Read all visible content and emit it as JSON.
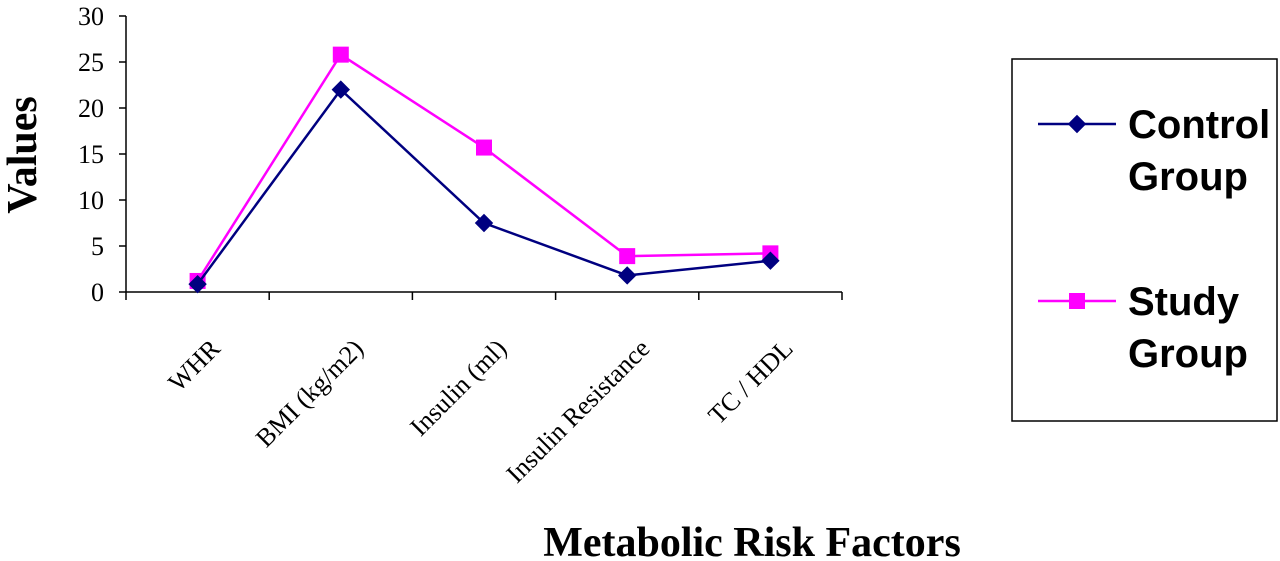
{
  "chart_data": {
    "type": "line",
    "categories": [
      "WHR",
      "BMI (kg/m2)",
      "Insulin (ml)",
      "Insulin Resistance",
      "TC / HDL"
    ],
    "series": [
      {
        "name": "Control Group",
        "values": [
          0.85,
          22.0,
          7.5,
          1.8,
          3.4
        ],
        "color": "#000080",
        "marker": "diamond"
      },
      {
        "name": "Study Group",
        "values": [
          1.2,
          25.8,
          15.7,
          3.9,
          4.2
        ],
        "color": "#ff00ff",
        "marker": "square"
      }
    ],
    "title": "",
    "xlabel": "Metabolic Risk Factors",
    "ylabel": "Values",
    "ylim": [
      0,
      30
    ],
    "yticks": [
      "0",
      "5",
      "10",
      "15",
      "20",
      "25",
      "30"
    ],
    "grid": false,
    "legend": {
      "placement": "right",
      "entries": [
        {
          "lines": [
            "Control",
            "Group"
          ]
        },
        {
          "lines": [
            "Study",
            "Group"
          ]
        }
      ]
    }
  }
}
